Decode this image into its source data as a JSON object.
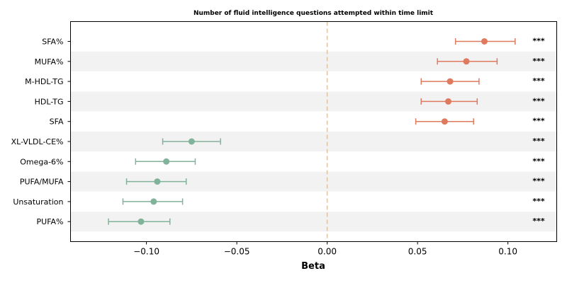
{
  "chart_data": {
    "type": "forest",
    "title": "Number of fluid intelligence questions attempted within time limit",
    "xlabel": "Beta",
    "xlim": [
      -0.142,
      0.127
    ],
    "xticks": [
      -0.1,
      -0.05,
      0.0,
      0.05,
      0.1
    ],
    "xtick_labels": [
      "−0.10",
      "−0.05",
      "0.00",
      "0.05",
      "0.10"
    ],
    "reference_line": 0.0,
    "colors": {
      "positive": "#e07a5f",
      "negative": "#81b29a",
      "reference": "#f2c078",
      "band": "#f2f2f2"
    },
    "rows": [
      {
        "label": "SFA%",
        "beta": 0.087,
        "ci_low": 0.071,
        "ci_high": 0.104,
        "significance": "***"
      },
      {
        "label": "MUFA%",
        "beta": 0.077,
        "ci_low": 0.061,
        "ci_high": 0.094,
        "significance": "***"
      },
      {
        "label": "M-HDL-TG",
        "beta": 0.068,
        "ci_low": 0.052,
        "ci_high": 0.084,
        "significance": "***"
      },
      {
        "label": "HDL-TG",
        "beta": 0.067,
        "ci_low": 0.052,
        "ci_high": 0.083,
        "significance": "***"
      },
      {
        "label": "SFA",
        "beta": 0.065,
        "ci_low": 0.049,
        "ci_high": 0.081,
        "significance": "***"
      },
      {
        "label": "XL-VLDL-CE%",
        "beta": -0.075,
        "ci_low": -0.091,
        "ci_high": -0.059,
        "significance": "***"
      },
      {
        "label": "Omega-6%",
        "beta": -0.089,
        "ci_low": -0.106,
        "ci_high": -0.073,
        "significance": "***"
      },
      {
        "label": "PUFA/MUFA",
        "beta": -0.094,
        "ci_low": -0.111,
        "ci_high": -0.078,
        "significance": "***"
      },
      {
        "label": "Unsaturation",
        "beta": -0.096,
        "ci_low": -0.113,
        "ci_high": -0.08,
        "significance": "***"
      },
      {
        "label": "PUFA%",
        "beta": -0.103,
        "ci_low": -0.121,
        "ci_high": -0.087,
        "significance": "***"
      }
    ]
  }
}
